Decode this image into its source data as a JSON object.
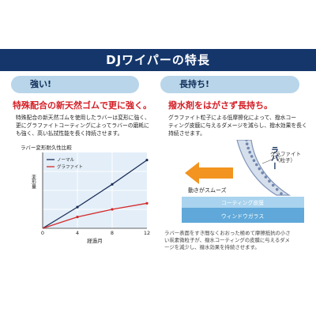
{
  "banner": {
    "title": "DJワイパーの特長"
  },
  "left": {
    "badge": "強い!",
    "headline": "特殊配合の新天然ゴムで更に強く。",
    "body": [
      "特殊配合の新天然ゴムを使用したラバーは変形に強く、",
      "更にグラファイトコーティングによってラバーの磨耗に",
      "も強く、高い払拭性能を長く持続させます。"
    ]
  },
  "right": {
    "badge": "長持ち!",
    "headline": "撥水剤をはがさず長持ち。",
    "body": [
      "グラファイト粒子による低摩擦化によって、撥水コー",
      "ティング皮膜に与えるダメージを減らし、撥水効果を長く",
      "持続させます。"
    ],
    "diagram": {
      "rubber_label": "ラバー",
      "graphite_label": [
        "グラファイト",
        "（粒子）"
      ],
      "motion_label": "動きがスムーズ",
      "coating_label": "コーティング皮膜",
      "glass_label": "ウィンドウガラス",
      "colors": {
        "coating": "#a9d3ee",
        "glass": "#5fa8d9",
        "arrow": "#f2941f",
        "rubber": "#7f94b8"
      }
    },
    "note": [
      "ラバー表面をすき間なくおおった極めて摩擦抵抗の小さ",
      "い炭素微粒子が、撥水コーティングの皮膜に与えるダメ",
      "ージを減少し、撥水効果を持続させます。"
    ]
  },
  "chart_data": {
    "type": "line",
    "title": "ラバー変形耐久性比較",
    "xlabel": "経過月",
    "ylabel": "変形量",
    "x_ticks": [
      0,
      4,
      8,
      12
    ],
    "xlim": [
      0,
      12
    ],
    "ylim": [
      0,
      100
    ],
    "grid": true,
    "legend_position": "top-left",
    "series": [
      {
        "name": "ノーマル",
        "color": "#1c2f5a",
        "x": [
          0,
          4,
          8,
          12
        ],
        "y": [
          0,
          28,
          58,
          90
        ]
      },
      {
        "name": "グラファイト",
        "color": "#d42a2a",
        "x": [
          0,
          4,
          8,
          12
        ],
        "y": [
          0,
          15,
          25,
          33
        ]
      }
    ]
  }
}
